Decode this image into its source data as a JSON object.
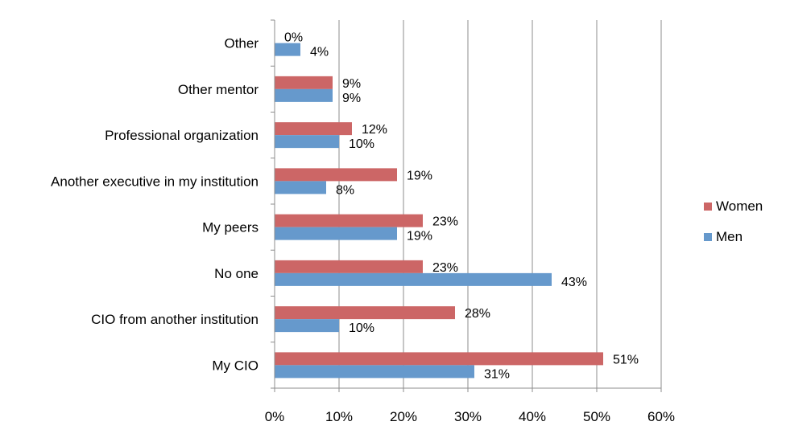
{
  "chart_data": {
    "type": "bar",
    "orientation": "horizontal",
    "categories": [
      "Other",
      "Other mentor",
      "Professional organization",
      "Another executive in my institution",
      "My peers",
      "No one",
      "CIO from another institution",
      "My CIO"
    ],
    "series": [
      {
        "name": "Women",
        "color": "#cc6666",
        "values": [
          0,
          9,
          12,
          19,
          23,
          23,
          28,
          51
        ]
      },
      {
        "name": "Men",
        "color": "#6699cc",
        "values": [
          4,
          9,
          10,
          8,
          19,
          43,
          10,
          31
        ]
      }
    ],
    "data_labels": {
      "Women": [
        "0%",
        "9%",
        "12%",
        "19%",
        "23%",
        "23%",
        "28%",
        "51%"
      ],
      "Men": [
        "4%",
        "9%",
        "10%",
        "8%",
        "19%",
        "43%",
        "10%",
        "31%"
      ]
    },
    "xlim": [
      0,
      60
    ],
    "xticks": [
      0,
      10,
      20,
      30,
      40,
      50,
      60
    ],
    "xtick_labels": [
      "0%",
      "10%",
      "20%",
      "30%",
      "40%",
      "50%",
      "60%"
    ],
    "grid": "vertical",
    "legend": {
      "placement": "right",
      "entries": [
        "Women",
        "Men"
      ]
    },
    "title": "",
    "xlabel": "",
    "ylabel": ""
  }
}
